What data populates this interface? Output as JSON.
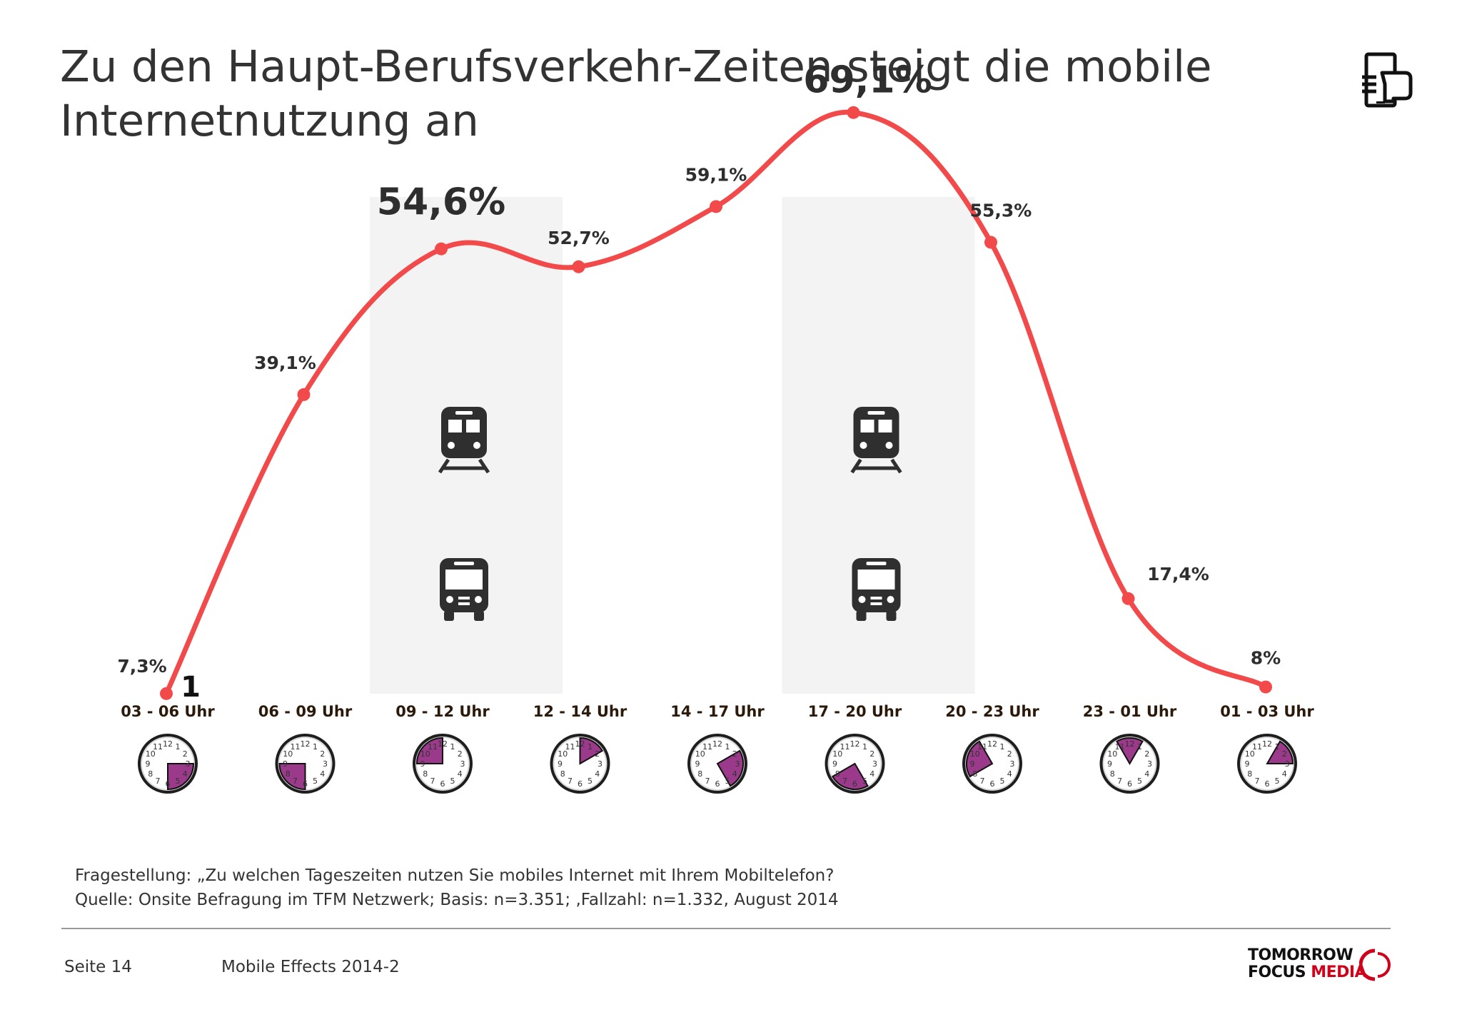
{
  "title": "Zu den Haupt-Berufsverkehr-Zeiten steigt die mobile Internetnutzung an",
  "colors": {
    "line": "#f24a4a",
    "highlight": "#f3f3f3",
    "clock_fill": "#9b3a8a",
    "text": "#333333",
    "axis_label": "#2b1a0a"
  },
  "chart_data": {
    "type": "line",
    "categories": [
      "03 - 06 Uhr",
      "06 - 09 Uhr",
      "09 - 12 Uhr",
      "12 - 14 Uhr",
      "14 - 17 Uhr",
      "17 - 20 Uhr",
      "20 - 23 Uhr",
      "23 - 01 Uhr",
      "01 - 03 Uhr"
    ],
    "values": [
      7.3,
      39.1,
      54.6,
      52.7,
      59.1,
      69.1,
      55.3,
      17.4,
      8
    ],
    "value_labels": [
      "7,3%",
      "39,1%",
      "54,6%",
      "52,7%",
      "59,1%",
      "69,1%",
      "55,3%",
      "17,4%",
      "8%"
    ],
    "emphasized": [
      2,
      5
    ],
    "highlighted_periods": [
      2,
      5
    ],
    "ylim": [
      0,
      75
    ],
    "axis_marker": "1",
    "clock_ranges": [
      [
        3,
        6
      ],
      [
        6,
        9
      ],
      [
        9,
        12
      ],
      [
        12,
        14
      ],
      [
        14,
        17
      ],
      [
        17,
        20
      ],
      [
        20,
        23
      ],
      [
        23,
        1
      ],
      [
        1,
        3
      ]
    ],
    "period_icons": [
      "train-icon",
      "bus-icon"
    ]
  },
  "footnotes": {
    "question": "Fragestellung: „Zu welchen Tageszeiten nutzen Sie mobiles Internet mit Ihrem Mobiltelefon?",
    "source": "Quelle: Onsite Befragung im TFM Netzwerk; Basis: n=3.351; ‚Fallzahl: n=1.332, August 2014"
  },
  "footer": {
    "page": "Seite 14",
    "report": "Mobile Effects 2014-2",
    "logo_line1": "TOMORROW",
    "logo_line2a": "FOCUS ",
    "logo_line2b": "MEDIA"
  }
}
